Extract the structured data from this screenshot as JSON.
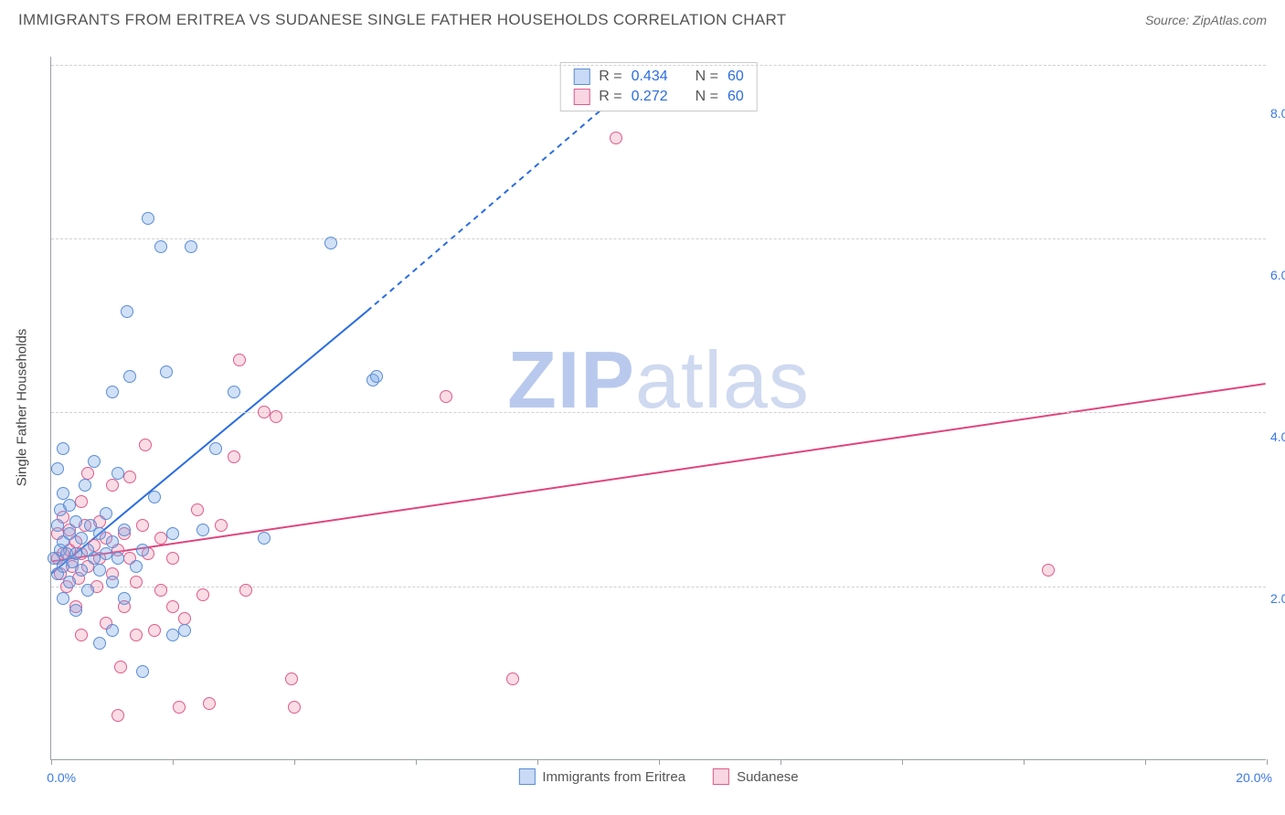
{
  "header": {
    "title": "IMMIGRANTS FROM ERITREA VS SUDANESE SINGLE FATHER HOUSEHOLDS CORRELATION CHART",
    "source_prefix": "Source: ",
    "source_name": "ZipAtlas.com"
  },
  "watermark": {
    "part1": "ZIP",
    "part2": "atlas"
  },
  "chart": {
    "type": "scatter",
    "background_color": "#ffffff",
    "grid_color": "#d0d0d0",
    "axis_color": "#9aa0a6",
    "xlim": [
      0,
      20
    ],
    "ylim": [
      0,
      8.7
    ],
    "x_ticks": [
      0,
      2,
      4,
      6,
      8,
      10,
      12,
      14,
      16,
      18,
      20
    ],
    "x_tick_labels_shown": {
      "0": "0.0%",
      "20": "20.0%"
    },
    "y_ticks": [
      2,
      4,
      6,
      8
    ],
    "y_tick_labels": [
      "2.0%",
      "4.0%",
      "6.0%",
      "8.0%"
    ],
    "y_grid_lines": [
      2.15,
      4.3,
      6.45,
      8.6
    ],
    "y_axis_label": "Single Father Households",
    "tick_label_color": "#3b78e7",
    "tick_label_fontsize": 14,
    "axis_label_fontsize": 15,
    "point_radius": 7
  },
  "legend_top": {
    "rows": [
      {
        "swatch": "blue",
        "r_label": "R =",
        "r_value": "0.434",
        "n_label": "N =",
        "n_value": "60"
      },
      {
        "swatch": "pink",
        "r_label": "R =",
        "r_value": "0.272",
        "n_label": "N =",
        "n_value": "60"
      }
    ]
  },
  "legend_bottom": {
    "items": [
      {
        "swatch": "blue",
        "label": "Immigrants from Eritrea"
      },
      {
        "swatch": "pink",
        "label": "Sudanese"
      }
    ]
  },
  "series": {
    "blue": {
      "color_fill": "rgba(120,165,230,0.35)",
      "color_stroke": "#5a8dd6",
      "trend": {
        "color": "#2b6de0",
        "width": 2,
        "solid": {
          "x1": 0.0,
          "y1": 2.3,
          "x2": 5.2,
          "y2": 5.55
        },
        "dashed": {
          "x1": 5.2,
          "y1": 5.55,
          "x2": 9.3,
          "y2": 8.2
        }
      },
      "points": [
        [
          0.05,
          2.5
        ],
        [
          0.1,
          2.3
        ],
        [
          0.1,
          2.9
        ],
        [
          0.1,
          3.6
        ],
        [
          0.15,
          2.6
        ],
        [
          0.15,
          3.1
        ],
        [
          0.2,
          2.0
        ],
        [
          0.2,
          2.4
        ],
        [
          0.2,
          2.7
        ],
        [
          0.2,
          3.3
        ],
        [
          0.2,
          3.85
        ],
        [
          0.25,
          2.55
        ],
        [
          0.3,
          2.2
        ],
        [
          0.3,
          2.8
        ],
        [
          0.3,
          3.15
        ],
        [
          0.35,
          2.45
        ],
        [
          0.4,
          1.85
        ],
        [
          0.4,
          2.55
        ],
        [
          0.4,
          2.95
        ],
        [
          0.5,
          2.35
        ],
        [
          0.5,
          2.75
        ],
        [
          0.55,
          3.4
        ],
        [
          0.6,
          2.1
        ],
        [
          0.6,
          2.6
        ],
        [
          0.65,
          2.9
        ],
        [
          0.7,
          2.5
        ],
        [
          0.7,
          3.7
        ],
        [
          0.8,
          1.45
        ],
        [
          0.8,
          2.35
        ],
        [
          0.8,
          2.8
        ],
        [
          0.9,
          2.55
        ],
        [
          0.9,
          3.05
        ],
        [
          1.0,
          1.6
        ],
        [
          1.0,
          2.2
        ],
        [
          1.0,
          2.7
        ],
        [
          1.0,
          4.55
        ],
        [
          1.1,
          2.5
        ],
        [
          1.1,
          3.55
        ],
        [
          1.2,
          2.0
        ],
        [
          1.2,
          2.85
        ],
        [
          1.25,
          5.55
        ],
        [
          1.3,
          4.75
        ],
        [
          1.4,
          2.4
        ],
        [
          1.5,
          1.1
        ],
        [
          1.5,
          2.6
        ],
        [
          1.6,
          6.7
        ],
        [
          1.7,
          3.25
        ],
        [
          1.8,
          6.35
        ],
        [
          1.9,
          4.8
        ],
        [
          2.0,
          1.55
        ],
        [
          2.0,
          2.8
        ],
        [
          2.2,
          1.6
        ],
        [
          2.3,
          6.35
        ],
        [
          2.5,
          2.85
        ],
        [
          2.7,
          3.85
        ],
        [
          3.0,
          4.55
        ],
        [
          3.5,
          2.75
        ],
        [
          4.6,
          6.4
        ],
        [
          5.3,
          4.7
        ],
        [
          5.35,
          4.75
        ]
      ]
    },
    "pink": {
      "color_fill": "rgba(240,140,170,0.30)",
      "color_stroke": "#e05a8a",
      "trend": {
        "color": "#e0457e",
        "width": 2,
        "solid": {
          "x1": 0.0,
          "y1": 2.45,
          "x2": 20.0,
          "y2": 4.65
        }
      },
      "points": [
        [
          0.1,
          2.5
        ],
        [
          0.1,
          2.8
        ],
        [
          0.15,
          2.3
        ],
        [
          0.2,
          2.55
        ],
        [
          0.2,
          3.0
        ],
        [
          0.25,
          2.15
        ],
        [
          0.3,
          2.6
        ],
        [
          0.3,
          2.85
        ],
        [
          0.35,
          2.4
        ],
        [
          0.4,
          1.9
        ],
        [
          0.4,
          2.7
        ],
        [
          0.45,
          2.25
        ],
        [
          0.5,
          1.55
        ],
        [
          0.5,
          2.55
        ],
        [
          0.5,
          3.2
        ],
        [
          0.55,
          2.9
        ],
        [
          0.6,
          2.4
        ],
        [
          0.6,
          3.55
        ],
        [
          0.7,
          2.65
        ],
        [
          0.75,
          2.15
        ],
        [
          0.8,
          2.5
        ],
        [
          0.8,
          2.95
        ],
        [
          0.9,
          1.7
        ],
        [
          0.9,
          2.75
        ],
        [
          1.0,
          2.3
        ],
        [
          1.0,
          3.4
        ],
        [
          1.1,
          2.6
        ],
        [
          1.1,
          0.55
        ],
        [
          1.15,
          1.15
        ],
        [
          1.2,
          1.9
        ],
        [
          1.2,
          2.8
        ],
        [
          1.3,
          2.5
        ],
        [
          1.3,
          3.5
        ],
        [
          1.4,
          1.55
        ],
        [
          1.4,
          2.2
        ],
        [
          1.5,
          2.9
        ],
        [
          1.55,
          3.9
        ],
        [
          1.6,
          2.55
        ],
        [
          1.7,
          1.6
        ],
        [
          1.8,
          2.1
        ],
        [
          1.8,
          2.75
        ],
        [
          2.0,
          1.9
        ],
        [
          2.0,
          2.5
        ],
        [
          2.1,
          0.65
        ],
        [
          2.2,
          1.75
        ],
        [
          2.4,
          3.1
        ],
        [
          2.5,
          2.05
        ],
        [
          2.6,
          0.7
        ],
        [
          2.8,
          2.9
        ],
        [
          3.0,
          3.75
        ],
        [
          3.1,
          4.95
        ],
        [
          3.2,
          2.1
        ],
        [
          3.5,
          4.3
        ],
        [
          3.7,
          4.25
        ],
        [
          3.95,
          1.0
        ],
        [
          4.0,
          0.65
        ],
        [
          6.5,
          4.5
        ],
        [
          7.6,
          1.0
        ],
        [
          9.3,
          7.7
        ],
        [
          16.4,
          2.35
        ]
      ]
    }
  }
}
